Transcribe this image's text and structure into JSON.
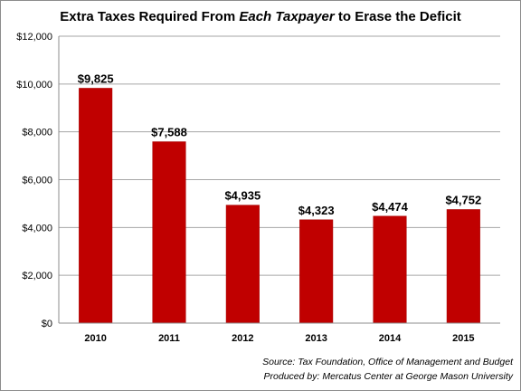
{
  "chart_data": {
    "type": "bar",
    "title": {
      "part1": "Extra Taxes Required From ",
      "emphasis": "Each Taxpayer",
      "part2": " to Erase the Deficit"
    },
    "categories": [
      "2010",
      "2011",
      "2012",
      "2013",
      "2014",
      "2015"
    ],
    "values": [
      9825,
      7588,
      4935,
      4323,
      4474,
      4752
    ],
    "data_labels": [
      "$9,825",
      "$7,588",
      "$4,935",
      "$4,323",
      "$4,474",
      "$4,752"
    ],
    "ylim": [
      0,
      12000
    ],
    "yticks": [
      0,
      2000,
      4000,
      6000,
      8000,
      10000,
      12000
    ],
    "ytick_labels": [
      "$0",
      "$2,000",
      "$4,000",
      "$6,000",
      "$8,000",
      "$10,000",
      "$12,000"
    ],
    "grid": true,
    "bar_color": "#c00000",
    "source_lines": [
      "Source: Tax Foundation, Office of Management and Budget",
      "Produced by: Mercatus Center at George Mason University"
    ]
  }
}
